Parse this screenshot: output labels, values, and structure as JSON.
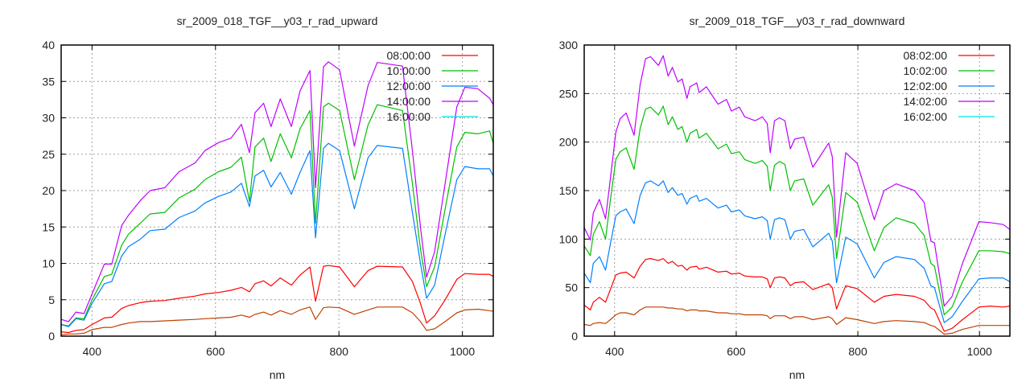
{
  "chart_data": [
    {
      "type": "line",
      "title": "sr_2009_018_TGF__y03_r_rad_upward",
      "xlabel": "nm",
      "ylabel": "",
      "xlim": [
        350,
        1050
      ],
      "ylim": [
        0,
        40
      ],
      "xticks": [
        400,
        600,
        800,
        1000
      ],
      "yticks": [
        0,
        5,
        10,
        15,
        20,
        25,
        30,
        35,
        40
      ],
      "grid": true,
      "legend_position": "top-right",
      "x": [
        350,
        362,
        374,
        387,
        400,
        420,
        432,
        448,
        459,
        478,
        494,
        518,
        541,
        567,
        583,
        605,
        625,
        642,
        655,
        664,
        678,
        690,
        705,
        723,
        737,
        753,
        762,
        775,
        783,
        801,
        825,
        847,
        862,
        903,
        919,
        932,
        942,
        955,
        972,
        991,
        1004,
        1025,
        1044,
        1050
      ],
      "series": [
        {
          "name": "08:00:00",
          "color": "#ff0000",
          "key_color": "#ff0000",
          "values": [
            0.6,
            0.5,
            0.8,
            0.9,
            1.6,
            2.5,
            2.6,
            3.8,
            4.2,
            4.6,
            4.8,
            4.9,
            5.2,
            5.5,
            5.8,
            6.0,
            6.3,
            6.7,
            6.1,
            7.2,
            7.6,
            6.9,
            8.0,
            7.0,
            8.4,
            9.5,
            4.8,
            9.6,
            9.7,
            9.5,
            6.8,
            9.0,
            9.6,
            9.5,
            7.5,
            4.5,
            1.8,
            2.8,
            5.0,
            7.8,
            8.6,
            8.5,
            8.5,
            8.2
          ]
        },
        {
          "name": "10:00:00",
          "color": "#00c000",
          "key_color": "#00c000",
          "values": [
            1.6,
            1.4,
            2.5,
            2.4,
            5.0,
            8.2,
            8.5,
            12.5,
            14.0,
            15.5,
            16.8,
            17.0,
            19.0,
            20.2,
            21.5,
            22.6,
            23.2,
            24.6,
            18.5,
            26.0,
            27.2,
            24.0,
            27.8,
            24.5,
            28.5,
            31.0,
            15.5,
            31.5,
            32.0,
            31.0,
            21.5,
            29.0,
            31.8,
            31.0,
            21.0,
            12.0,
            6.8,
            9.5,
            17.5,
            26.0,
            28.0,
            27.8,
            28.2,
            26.5
          ]
        },
        {
          "name": "12:00:00",
          "color": "#0080ff",
          "key_color": "#0080ff",
          "values": [
            1.6,
            1.3,
            2.4,
            2.2,
            4.5,
            7.2,
            7.5,
            11.0,
            12.3,
            13.3,
            14.5,
            14.7,
            16.3,
            17.2,
            18.3,
            19.2,
            19.8,
            21.0,
            17.8,
            22.0,
            22.8,
            20.5,
            22.5,
            19.5,
            22.5,
            25.5,
            13.5,
            25.8,
            26.5,
            25.5,
            17.5,
            24.5,
            26.2,
            25.8,
            17.0,
            10.0,
            5.2,
            7.0,
            14.0,
            21.5,
            23.3,
            23.0,
            23.0,
            22.0
          ]
        },
        {
          "name": "14:00:00",
          "color": "#c000ff",
          "key_color": "#c000ff",
          "values": [
            2.3,
            2.0,
            3.3,
            3.1,
            5.8,
            9.9,
            9.9,
            15.2,
            16.6,
            18.6,
            20.0,
            20.4,
            22.6,
            23.8,
            25.5,
            26.6,
            27.2,
            29.1,
            25.2,
            30.7,
            32.0,
            28.8,
            32.6,
            28.8,
            33.7,
            36.5,
            20.4,
            37.0,
            37.7,
            36.6,
            26.1,
            34.4,
            37.6,
            37.1,
            25.5,
            15.0,
            8.1,
            11.6,
            21.0,
            31.5,
            34.2,
            34.0,
            32.7,
            31.8
          ]
        },
        {
          "name": "16:00:00",
          "color": "#c04000",
          "key_color": "#00e0e0",
          "values": [
            0.2,
            0.3,
            0.3,
            0.4,
            0.9,
            1.2,
            1.2,
            1.6,
            1.8,
            2.0,
            2.0,
            2.1,
            2.2,
            2.3,
            2.4,
            2.5,
            2.6,
            2.9,
            2.6,
            3.0,
            3.3,
            2.9,
            3.5,
            3.0,
            3.6,
            4.0,
            2.3,
            3.9,
            4.0,
            3.9,
            3.0,
            3.6,
            4.0,
            4.0,
            3.2,
            2.0,
            0.8,
            1.0,
            2.0,
            3.2,
            3.6,
            3.7,
            3.5,
            3.4
          ]
        }
      ]
    },
    {
      "type": "line",
      "title": "sr_2009_018_TGF__y03_r_rad_downward",
      "xlabel": "nm",
      "ylabel": "",
      "xlim": [
        350,
        1050
      ],
      "ylim": [
        0,
        300
      ],
      "xticks": [
        400,
        600,
        800,
        1000
      ],
      "yticks": [
        0,
        50,
        100,
        150,
        200,
        250,
        300
      ],
      "grid": true,
      "legend_position": "top-right",
      "x": [
        350,
        360,
        365,
        375,
        385,
        393,
        402,
        409,
        419,
        432,
        442,
        451,
        459,
        472,
        480,
        488,
        495,
        504,
        511,
        519,
        524,
        535,
        539,
        551,
        570,
        584,
        592,
        605,
        614,
        631,
        643,
        651,
        656,
        663,
        671,
        680,
        689,
        696,
        711,
        726,
        752,
        758,
        765,
        780,
        799,
        827,
        843,
        863,
        893,
        909,
        920,
        926,
        942,
        955,
        972,
        999,
        1017,
        1039,
        1050
      ],
      "series": [
        {
          "name": "08:02:00",
          "color": "#ff0000",
          "key_color": "#ff0000",
          "values": [
            32,
            27,
            35,
            40,
            35,
            48,
            63,
            65,
            66,
            60,
            72,
            79,
            80,
            78,
            80,
            75,
            77,
            72,
            73,
            68,
            71,
            72,
            69,
            71,
            66,
            67,
            64,
            65,
            62,
            61,
            61,
            59,
            50,
            60,
            61,
            60,
            52,
            55,
            56,
            48,
            54,
            50,
            28,
            52,
            49,
            35,
            41,
            43,
            41,
            37,
            29,
            27,
            5,
            8,
            17,
            30,
            31,
            30,
            31
          ]
        },
        {
          "name": "10:02:00",
          "color": "#00c000",
          "key_color": "#00c000",
          "values": [
            93,
            83,
            105,
            118,
            100,
            140,
            182,
            190,
            194,
            172,
            214,
            234,
            236,
            228,
            237,
            218,
            226,
            213,
            216,
            200,
            209,
            213,
            204,
            209,
            193,
            198,
            188,
            190,
            182,
            178,
            181,
            175,
            150,
            176,
            180,
            177,
            150,
            160,
            162,
            135,
            156,
            143,
            80,
            148,
            138,
            88,
            112,
            122,
            116,
            104,
            75,
            72,
            22,
            30,
            56,
            88,
            88,
            87,
            85
          ]
        },
        {
          "name": "12:02:00",
          "color": "#0080ff",
          "key_color": "#0080ff",
          "values": [
            65,
            55,
            75,
            82,
            68,
            95,
            124,
            128,
            131,
            116,
            145,
            158,
            160,
            155,
            160,
            148,
            153,
            145,
            147,
            136,
            142,
            145,
            139,
            142,
            132,
            135,
            128,
            130,
            124,
            121,
            123,
            119,
            100,
            120,
            122,
            120,
            100,
            108,
            110,
            92,
            106,
            98,
            55,
            102,
            95,
            60,
            76,
            82,
            79,
            70,
            52,
            50,
            14,
            20,
            36,
            59,
            60,
            60,
            56
          ]
        },
        {
          "name": "14:02:00",
          "color": "#c000ff",
          "key_color": "#c000ff",
          "values": [
            112,
            99,
            127,
            141,
            121,
            162,
            210,
            224,
            230,
            207,
            259,
            286,
            288,
            279,
            289,
            268,
            277,
            262,
            265,
            245,
            257,
            261,
            251,
            257,
            239,
            244,
            232,
            236,
            226,
            222,
            226,
            219,
            189,
            222,
            225,
            222,
            193,
            203,
            205,
            174,
            199,
            185,
            102,
            189,
            178,
            120,
            150,
            157,
            150,
            138,
            98,
            96,
            31,
            41,
            75,
            118,
            117,
            115,
            110
          ]
        },
        {
          "name": "16:02:00",
          "color": "#c04000",
          "key_color": "#00e0e0",
          "values": [
            12,
            11,
            13,
            14,
            13,
            17,
            22,
            24,
            24,
            22,
            27,
            30,
            30,
            30,
            30,
            29,
            29,
            28,
            28,
            26,
            27,
            27,
            26,
            26,
            24,
            24,
            23,
            23,
            22,
            22,
            22,
            21,
            18,
            21,
            21,
            21,
            18,
            20,
            20,
            17,
            20,
            18,
            12,
            19,
            17,
            13,
            15,
            16,
            15,
            14,
            11,
            10,
            2,
            3,
            7,
            11,
            11,
            11,
            11
          ]
        }
      ]
    }
  ]
}
